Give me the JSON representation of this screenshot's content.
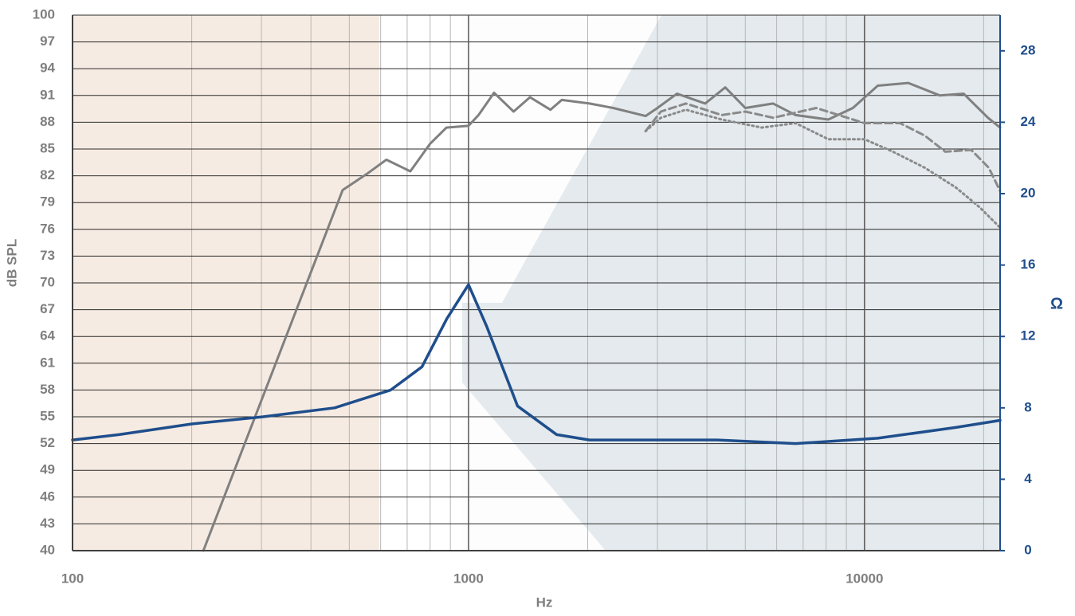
{
  "chart_data": {
    "type": "line",
    "xlabel": "Hz",
    "ylabel": "dB SPL",
    "y2label": "Ω",
    "xscale": "log",
    "xlim": [
      100,
      22000
    ],
    "xticks": [
      100,
      1000,
      10000
    ],
    "ylim": [
      40,
      100
    ],
    "yticks": [
      40,
      43,
      46,
      49,
      52,
      55,
      58,
      61,
      64,
      67,
      70,
      73,
      76,
      79,
      82,
      85,
      88,
      91,
      94,
      97,
      100
    ],
    "y2lim": [
      0,
      30
    ],
    "y2ticks": [
      0,
      4,
      8,
      12,
      16,
      20,
      24,
      28
    ],
    "grid": true,
    "y2color": "#1f4e8c",
    "series": [
      {
        "color": "#808080",
        "dash": "solid",
        "x": [
          214,
          481,
          553,
          620,
          713,
          800,
          880,
          1000,
          1060,
          1160,
          1300,
          1430,
          1610,
          1720,
          2020,
          2320,
          2800,
          3000,
          3360,
          3960,
          4450,
          5000,
          5880,
          6700,
          8100,
          9350,
          10800,
          12900,
          15500,
          17800,
          20500,
          22000
        ],
        "values": [
          40,
          80.4,
          82.2,
          83.8,
          82.5,
          85.6,
          87.4,
          87.6,
          88.8,
          91.3,
          89.2,
          90.8,
          89.4,
          90.5,
          90.1,
          89.6,
          88.7,
          89.6,
          91.2,
          90.1,
          91.9,
          89.6,
          90.1,
          88.8,
          88.3,
          89.6,
          92.1,
          92.4,
          91,
          91.2,
          88.5,
          87.4
        ]
      },
      {
        "color": "#8a8a8a",
        "dash": "dashed",
        "x": [
          2800,
          3060,
          3540,
          4360,
          5000,
          5880,
          7550,
          10000,
          12300,
          14200,
          16000,
          18600,
          20600,
          22000
        ],
        "values": [
          87,
          89.2,
          90.1,
          88.8,
          89.2,
          88.5,
          89.6,
          87.9,
          87.9,
          86.5,
          84.7,
          84.9,
          82.9,
          80.3
        ]
      },
      {
        "color": "#8a8a8a",
        "dash": "dotted",
        "x": [
          2800,
          3060,
          3540,
          4360,
          5500,
          6700,
          8100,
          10000,
          11800,
          14200,
          17000,
          19500,
          22000
        ],
        "values": [
          87,
          88.5,
          89.4,
          88.3,
          87.4,
          87.9,
          86.1,
          86.1,
          84.7,
          82.9,
          80.7,
          78.5,
          76.2
        ]
      },
      {
        "color": "#1f4e8c",
        "dash": "solid",
        "axis": "y2",
        "x": [
          100,
          131,
          200,
          303,
          459,
          636,
          763,
          882,
          1000,
          1110,
          1330,
          1670,
          2020,
          4250,
          6700,
          10800,
          17000,
          22000
        ],
        "values": [
          6.2,
          6.5,
          7.1,
          7.5,
          8.0,
          9.0,
          10.3,
          13.0,
          14.9,
          12.6,
          8.1,
          6.5,
          6.2,
          6.2,
          6.0,
          6.3,
          6.9,
          7.3
        ]
      }
    ]
  }
}
